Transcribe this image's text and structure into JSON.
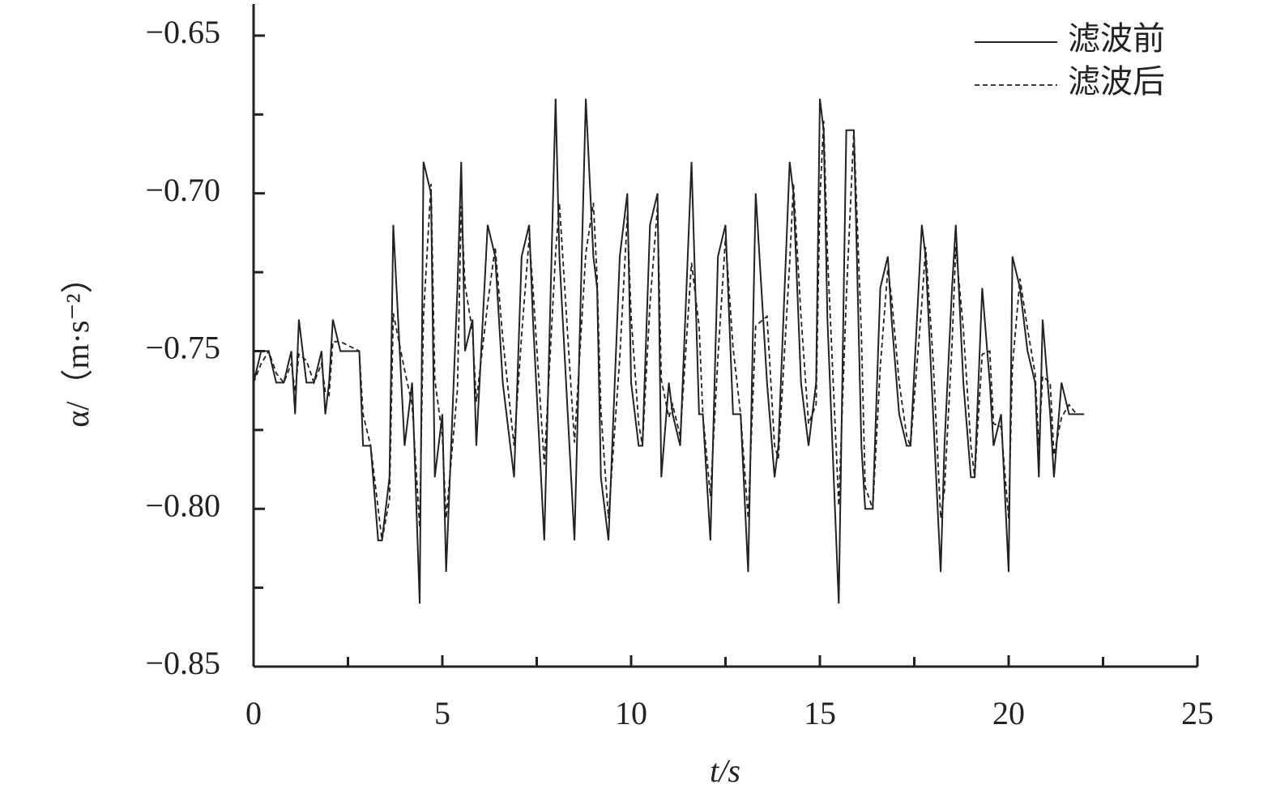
{
  "chart_data": {
    "type": "line",
    "xlabel": "t/s",
    "ylabel": "α/（m·s⁻²）",
    "x": [
      0,
      0.2,
      0.4,
      0.6,
      0.8,
      1.0,
      1.1,
      1.2,
      1.4,
      1.6,
      1.8,
      1.9,
      2.0,
      2.1,
      2.3,
      2.8,
      2.9,
      3.1,
      3.3,
      3.4,
      3.6,
      3.7,
      4.0,
      4.2,
      4.4,
      4.5,
      4.7,
      4.8,
      5.0,
      5.1,
      5.4,
      5.5,
      5.6,
      5.8,
      5.9,
      6.2,
      6.4,
      6.6,
      6.9,
      7.1,
      7.3,
      7.4,
      7.7,
      8.0,
      8.1,
      8.5,
      8.8,
      9.0,
      9.1,
      9.2,
      9.4,
      9.7,
      9.9,
      10.0,
      10.2,
      10.3,
      10.5,
      10.7,
      10.8,
      11.0,
      11.1,
      11.3,
      11.6,
      11.8,
      11.9,
      12.1,
      12.3,
      12.5,
      12.7,
      12.9,
      13.1,
      13.3,
      13.6,
      13.8,
      13.9,
      14.2,
      14.3,
      14.5,
      14.7,
      14.9,
      15.0,
      15.1,
      15.2,
      15.5,
      15.7,
      15.9,
      16.1,
      16.2,
      16.4,
      16.6,
      16.8,
      16.9,
      17.1,
      17.3,
      17.4,
      17.7,
      17.8,
      18.0,
      18.2,
      18.3,
      18.5,
      18.6,
      18.8,
      19.0,
      19.1,
      19.3,
      19.5,
      19.6,
      19.8,
      20.0,
      20.1,
      20.3,
      20.5,
      20.7,
      20.8,
      20.9,
      21.1,
      21.2,
      21.4,
      21.6,
      21.8,
      22.0
    ],
    "series": [
      {
        "name": "滤波前",
        "color": "#222222",
        "dash": false,
        "values": [
          -0.76,
          -0.75,
          -0.75,
          -0.76,
          -0.76,
          -0.75,
          -0.77,
          -0.74,
          -0.76,
          -0.76,
          -0.75,
          -0.77,
          -0.76,
          -0.74,
          -0.75,
          -0.75,
          -0.78,
          -0.78,
          -0.81,
          -0.81,
          -0.79,
          -0.71,
          -0.78,
          -0.76,
          -0.83,
          -0.69,
          -0.7,
          -0.79,
          -0.77,
          -0.82,
          -0.73,
          -0.69,
          -0.75,
          -0.74,
          -0.78,
          -0.71,
          -0.72,
          -0.76,
          -0.79,
          -0.72,
          -0.71,
          -0.74,
          -0.81,
          -0.67,
          -0.72,
          -0.81,
          -0.67,
          -0.72,
          -0.73,
          -0.79,
          -0.81,
          -0.72,
          -0.7,
          -0.76,
          -0.78,
          -0.78,
          -0.71,
          -0.7,
          -0.79,
          -0.76,
          -0.77,
          -0.78,
          -0.69,
          -0.77,
          -0.77,
          -0.81,
          -0.72,
          -0.71,
          -0.77,
          -0.77,
          -0.82,
          -0.7,
          -0.76,
          -0.79,
          -0.78,
          -0.69,
          -0.7,
          -0.76,
          -0.78,
          -0.76,
          -0.67,
          -0.68,
          -0.74,
          -0.83,
          -0.68,
          -0.68,
          -0.78,
          -0.8,
          -0.8,
          -0.73,
          -0.72,
          -0.74,
          -0.77,
          -0.78,
          -0.78,
          -0.71,
          -0.72,
          -0.77,
          -0.82,
          -0.78,
          -0.73,
          -0.71,
          -0.76,
          -0.79,
          -0.79,
          -0.73,
          -0.76,
          -0.78,
          -0.77,
          -0.82,
          -0.72,
          -0.73,
          -0.75,
          -0.76,
          -0.79,
          -0.74,
          -0.77,
          -0.79,
          -0.76,
          -0.77,
          -0.77,
          -0.77
        ]
      },
      {
        "name": "滤波后",
        "color": "#222222",
        "dash": true,
        "values": [
          -0.76,
          -0.754,
          -0.75,
          -0.757,
          -0.76,
          -0.754,
          -0.763,
          -0.751,
          -0.753,
          -0.76,
          -0.754,
          -0.763,
          -0.764,
          -0.747,
          -0.747,
          -0.75,
          -0.77,
          -0.78,
          -0.8,
          -0.81,
          -0.797,
          -0.738,
          -0.756,
          -0.767,
          -0.806,
          -0.739,
          -0.697,
          -0.759,
          -0.777,
          -0.803,
          -0.762,
          -0.704,
          -0.729,
          -0.744,
          -0.766,
          -0.735,
          -0.717,
          -0.746,
          -0.78,
          -0.745,
          -0.714,
          -0.73,
          -0.786,
          -0.719,
          -0.703,
          -0.779,
          -0.719,
          -0.703,
          -0.727,
          -0.769,
          -0.803,
          -0.752,
          -0.707,
          -0.739,
          -0.773,
          -0.78,
          -0.735,
          -0.704,
          -0.759,
          -0.771,
          -0.767,
          -0.777,
          -0.722,
          -0.742,
          -0.77,
          -0.796,
          -0.752,
          -0.714,
          -0.749,
          -0.77,
          -0.803,
          -0.742,
          -0.739,
          -0.78,
          -0.784,
          -0.722,
          -0.697,
          -0.739,
          -0.773,
          -0.767,
          -0.702,
          -0.677,
          -0.719,
          -0.799,
          -0.733,
          -0.68,
          -0.745,
          -0.793,
          -0.8,
          -0.755,
          -0.724,
          -0.733,
          -0.76,
          -0.777,
          -0.78,
          -0.735,
          -0.717,
          -0.753,
          -0.803,
          -0.794,
          -0.748,
          -0.717,
          -0.743,
          -0.78,
          -0.79,
          -0.751,
          -0.75,
          -0.773,
          -0.774,
          -0.803,
          -0.755,
          -0.727,
          -0.743,
          -0.757,
          -0.78,
          -0.758,
          -0.76,
          -0.783,
          -0.771,
          -0.767,
          -0.77,
          -0.77
        ]
      }
    ],
    "xlim": [
      0,
      25
    ],
    "ylim": [
      -0.85,
      -0.64
    ],
    "xticks": [
      0,
      5,
      10,
      15,
      20,
      25
    ],
    "xminorticks": [
      2.5,
      7.5,
      12.5,
      17.5,
      22.5
    ],
    "yticks": [
      {
        "value": -0.85,
        "label": "−0.85"
      },
      {
        "value": -0.8,
        "label": "−0.80"
      },
      {
        "value": -0.75,
        "label": "−0.75"
      },
      {
        "value": -0.7,
        "label": "−0.70"
      },
      {
        "value": -0.65,
        "label": "−0.65"
      }
    ],
    "yminorticks": [
      -0.825,
      -0.775,
      -0.725,
      -0.675
    ],
    "grid": false,
    "legend": "upper right"
  }
}
